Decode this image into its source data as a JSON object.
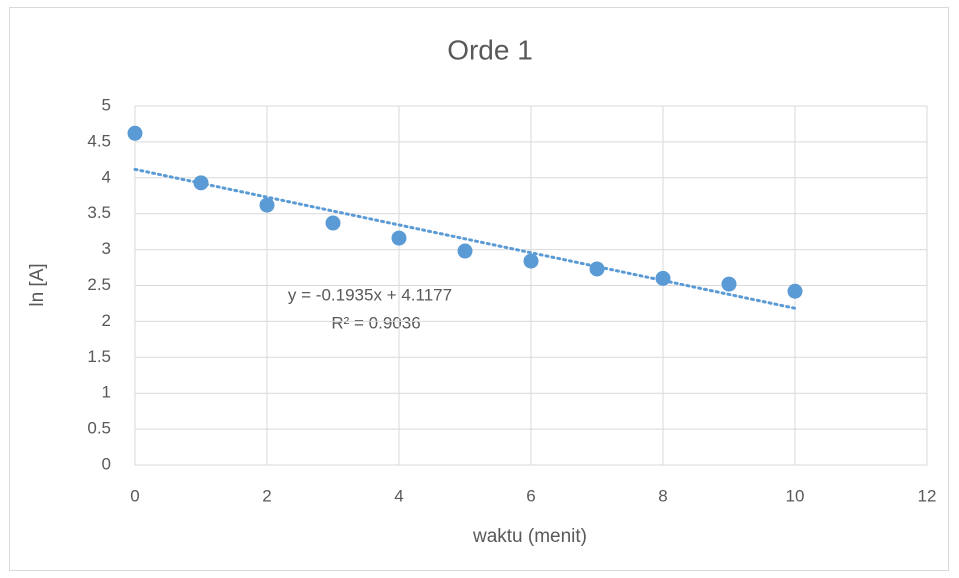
{
  "chart_data": {
    "type": "scatter",
    "title": "Orde 1",
    "x_label": "waktu (menit)",
    "y_label": "ln [A]",
    "series": [
      {
        "name": "ln [A]",
        "color": "#5b9bd5",
        "x": [
          0,
          1,
          2,
          3,
          4,
          5,
          6,
          7,
          8,
          9,
          10
        ],
        "values": [
          4.62,
          3.93,
          3.62,
          3.37,
          3.16,
          2.98,
          2.84,
          2.73,
          2.6,
          2.52,
          2.42
        ]
      }
    ],
    "trendline": {
      "slope": -0.1935,
      "intercept": 4.1177,
      "color": "#5b9bd5",
      "equation": "y = -0.1935x + 4.1177",
      "r2": "R² = 0.9036"
    },
    "xlim": [
      0,
      12
    ],
    "xticks": [
      0,
      2,
      4,
      6,
      8,
      10,
      12
    ],
    "ylim": [
      0,
      5
    ],
    "yticks": [
      0,
      0.5,
      1,
      1.5,
      2,
      2.5,
      3,
      3.5,
      4,
      4.5,
      5
    ],
    "grid": true
  }
}
